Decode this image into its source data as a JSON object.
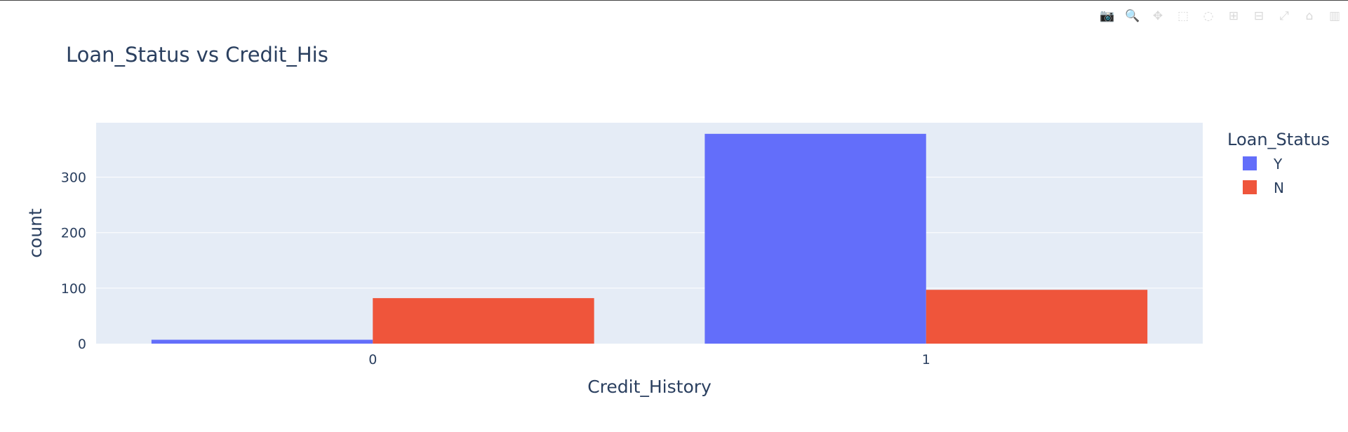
{
  "toolbar": {
    "buttons": [
      {
        "name": "camera-icon",
        "glyph": "📷"
      },
      {
        "name": "zoom-icon",
        "glyph": "🔍"
      },
      {
        "name": "pan-icon",
        "glyph": "✥"
      },
      {
        "name": "box-select-icon",
        "glyph": "⬚"
      },
      {
        "name": "lasso-select-icon",
        "glyph": "◌"
      },
      {
        "name": "zoom-in-icon",
        "glyph": "⊞"
      },
      {
        "name": "zoom-out-icon",
        "glyph": "⊟"
      },
      {
        "name": "autoscale-icon",
        "glyph": "⤢"
      },
      {
        "name": "reset-axes-icon",
        "glyph": "⌂"
      },
      {
        "name": "plotly-logo-icon",
        "glyph": "▥"
      }
    ]
  },
  "colors": {
    "plot_bg": "#e5ecf6",
    "grid": "#ffffff",
    "text": "#2a3f5f",
    "Y": "#636efa",
    "N": "#ef553b"
  },
  "chart_data": {
    "type": "bar",
    "title": "Loan_Status vs Credit_His",
    "xlabel": "Credit_History",
    "ylabel": "count",
    "categories": [
      "0",
      "1"
    ],
    "series": [
      {
        "name": "Y",
        "values": [
          7,
          378
        ]
      },
      {
        "name": "N",
        "values": [
          82,
          97
        ]
      }
    ],
    "ylim": [
      0,
      398
    ],
    "yticks": [
      0,
      100,
      200,
      300
    ],
    "legend": {
      "title": "Loan_Status",
      "position": "top-right"
    },
    "grid": true,
    "barmode": "group"
  }
}
